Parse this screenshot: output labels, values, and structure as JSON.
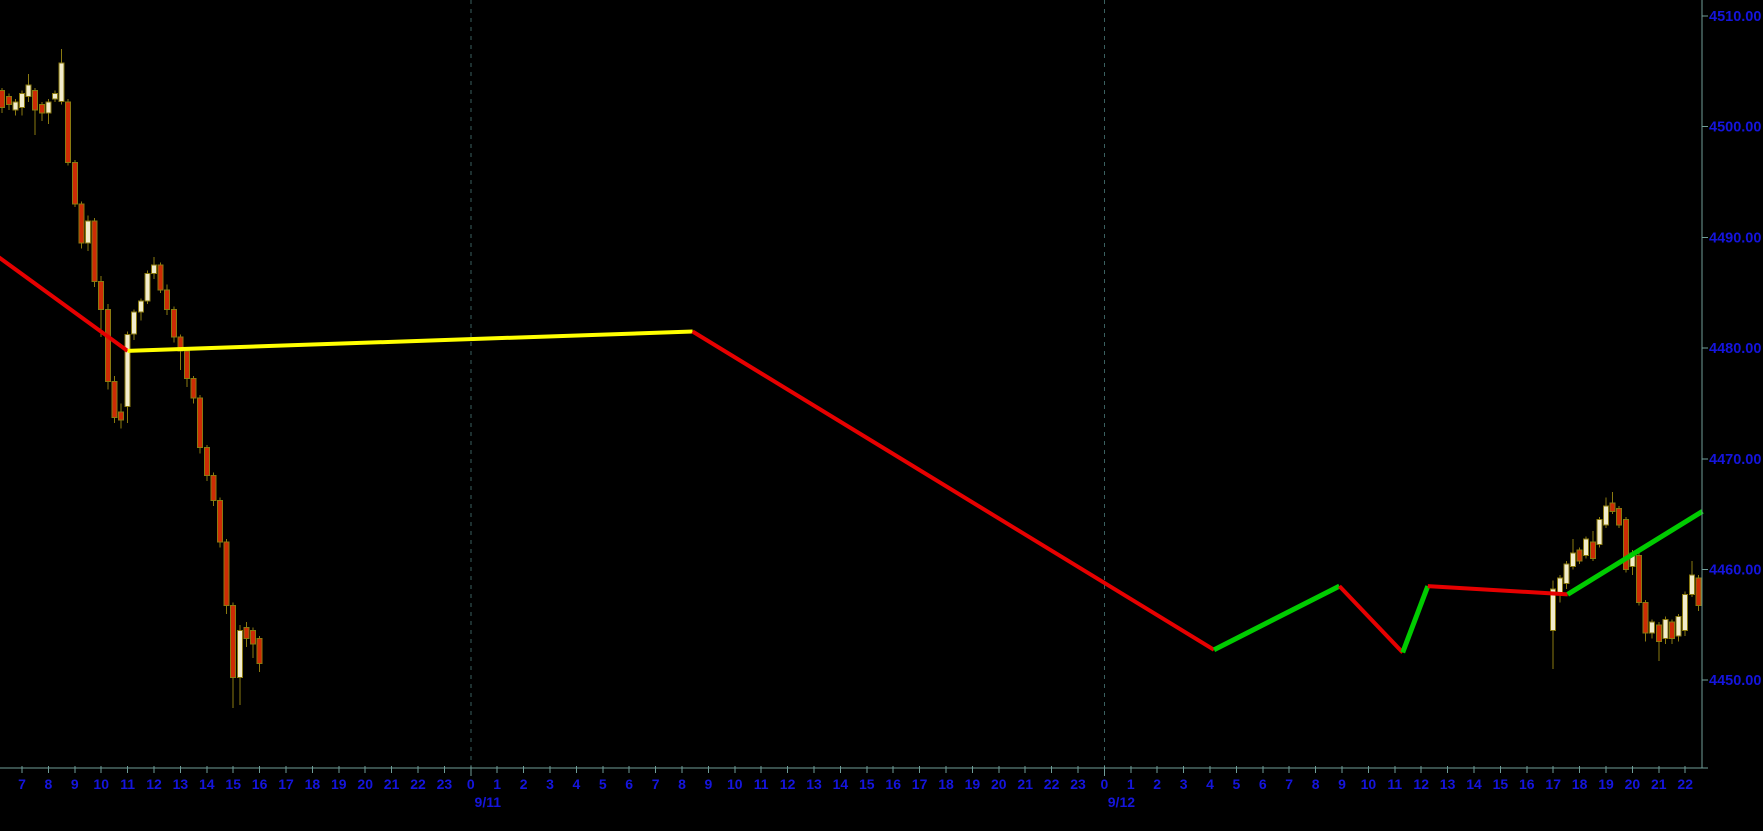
{
  "colors": {
    "background": "#000000",
    "axis_line": "#6f9e98",
    "session_divider": "#3a6161",
    "label_blue": "#1515dd",
    "candle_up_fill": "#f2eccd",
    "candle_down_fill": "#cd2b05",
    "candle_outline": "#8a7a10",
    "line_red": "#e60000",
    "line_yellow": "#ffff00",
    "line_green": "#00cc00"
  },
  "y_axis": {
    "ticks": [
      {
        "label": "4510.00",
        "price": 4510.0
      },
      {
        "label": "4500.00",
        "price": 4500.0
      },
      {
        "label": "4490.00",
        "price": 4490.0
      },
      {
        "label": "4480.00",
        "price": 4480.0
      },
      {
        "label": "4470.00",
        "price": 4470.0
      },
      {
        "label": "4460.00",
        "price": 4460.0
      },
      {
        "label": "4450.00",
        "price": 4450.0
      }
    ]
  },
  "x_axis": {
    "days": [
      {
        "index": 0,
        "date_label": null,
        "hours": [
          7,
          8,
          9,
          10,
          11,
          12,
          13,
          14,
          15,
          16,
          17,
          18,
          19,
          20,
          21,
          22,
          23
        ]
      },
      {
        "index": 1,
        "date_label": "9/11",
        "hours": [
          0,
          1,
          2,
          3,
          4,
          5,
          6,
          7,
          8,
          9,
          10,
          11,
          12,
          13,
          14,
          15,
          16,
          17,
          18,
          19,
          20,
          21,
          22,
          23
        ]
      },
      {
        "index": 2,
        "date_label": "9/12",
        "hours": [
          0,
          1,
          2,
          3,
          4,
          5,
          6,
          7,
          8,
          9,
          10,
          11,
          12,
          13,
          14,
          15,
          16,
          17,
          18,
          19,
          20,
          21,
          22
        ]
      }
    ]
  },
  "chart_data": {
    "type": "candlestick",
    "interval": "15min",
    "grid": "session-divider-dashed-verticals-only",
    "visible_price_range": [
      4446.5,
      4511.5
    ],
    "candle_columns": [
      "day",
      "time",
      "open",
      "high",
      "low",
      "close"
    ],
    "candles": [
      [
        0,
        "06:15",
        4503.25,
        4503.5,
        4501.25,
        4501.75
      ],
      [
        0,
        "06:30",
        4502.75,
        4503.0,
        4501.5,
        4502.0
      ],
      [
        0,
        "06:45",
        4501.5,
        4502.5,
        4501.0,
        4502.25
      ],
      [
        0,
        "07:00",
        4501.75,
        4503.25,
        4501.0,
        4503.0
      ],
      [
        0,
        "07:15",
        4502.75,
        4504.75,
        4502.25,
        4503.75
      ],
      [
        0,
        "07:30",
        4503.25,
        4503.5,
        4499.25,
        4501.5
      ],
      [
        0,
        "07:45",
        4502.0,
        4502.25,
        4500.5,
        4501.25
      ],
      [
        0,
        "08:00",
        4501.25,
        4502.5,
        4500.25,
        4502.25
      ],
      [
        0,
        "08:15",
        4502.5,
        4503.25,
        4502.25,
        4503.0
      ],
      [
        0,
        "08:30",
        4502.25,
        4507.0,
        4502.0,
        4505.75
      ],
      [
        0,
        "08:45",
        4502.25,
        4502.5,
        4496.5,
        4496.75
      ],
      [
        0,
        "09:00",
        4496.75,
        4497.0,
        4492.75,
        4493.0
      ],
      [
        0,
        "09:15",
        4493.0,
        4493.25,
        4489.0,
        4489.5
      ],
      [
        0,
        "09:30",
        4489.5,
        4492.0,
        4488.75,
        4491.5
      ],
      [
        0,
        "09:45",
        4491.5,
        4491.75,
        4485.5,
        4486.0
      ],
      [
        0,
        "10:00",
        4486.0,
        4486.5,
        4481.0,
        4483.5
      ],
      [
        0,
        "10:15",
        4483.5,
        4484.0,
        4476.25,
        4477.0
      ],
      [
        0,
        "10:30",
        4477.0,
        4477.5,
        4473.25,
        4473.75
      ],
      [
        0,
        "10:45",
        4474.25,
        4475.0,
        4472.75,
        4473.5
      ],
      [
        0,
        "11:00",
        4474.75,
        4481.5,
        4473.25,
        4481.25
      ],
      [
        0,
        "11:15",
        4481.25,
        4483.5,
        4480.75,
        4483.25
      ],
      [
        0,
        "11:30",
        4483.25,
        4484.5,
        4482.5,
        4484.25
      ],
      [
        0,
        "11:45",
        4484.25,
        4487.0,
        4484.0,
        4486.75
      ],
      [
        0,
        "12:00",
        4486.75,
        4488.25,
        4486.25,
        4487.5
      ],
      [
        0,
        "12:15",
        4487.5,
        4487.75,
        4485.0,
        4485.25
      ],
      [
        0,
        "12:30",
        4485.25,
        4485.75,
        4483.0,
        4483.5
      ],
      [
        0,
        "12:45",
        4483.5,
        4483.75,
        4480.5,
        4481.0
      ],
      [
        0,
        "13:00",
        4481.0,
        4481.25,
        4478.0,
        4479.75
      ],
      [
        0,
        "13:15",
        4479.75,
        4480.0,
        4476.5,
        4477.25
      ],
      [
        0,
        "13:30",
        4477.25,
        4477.5,
        4475.0,
        4475.5
      ],
      [
        0,
        "13:45",
        4475.5,
        4475.75,
        4470.5,
        4471.0
      ],
      [
        0,
        "14:00",
        4471.0,
        4471.25,
        4468.0,
        4468.5
      ],
      [
        0,
        "14:15",
        4468.5,
        4468.75,
        4465.75,
        4466.25
      ],
      [
        0,
        "14:30",
        4466.25,
        4466.5,
        4462.0,
        4462.5
      ],
      [
        0,
        "14:45",
        4462.5,
        4462.75,
        4456.0,
        4456.75
      ],
      [
        0,
        "15:00",
        4456.75,
        4457.0,
        4447.5,
        4450.25
      ],
      [
        0,
        "15:15",
        4450.25,
        4455.0,
        4447.75,
        4454.5
      ],
      [
        0,
        "15:30",
        4454.75,
        4455.25,
        4453.0,
        4453.75
      ],
      [
        0,
        "15:45",
        4454.5,
        4454.75,
        4452.0,
        4453.25
      ],
      [
        0,
        "16:00",
        4453.75,
        4454.0,
        4450.75,
        4451.5
      ],
      [
        2,
        "17:00",
        4454.5,
        4459.0,
        4451.0,
        4458.25
      ],
      [
        2,
        "17:15",
        4457.75,
        4459.5,
        4457.0,
        4459.25
      ],
      [
        2,
        "17:30",
        4458.75,
        4460.75,
        4458.25,
        4460.5
      ],
      [
        2,
        "17:45",
        4460.25,
        4462.75,
        4460.0,
        4461.5
      ],
      [
        2,
        "18:00",
        4461.75,
        4462.0,
        4460.5,
        4460.75
      ],
      [
        2,
        "18:15",
        4461.25,
        4463.0,
        4461.0,
        4462.75
      ],
      [
        2,
        "18:30",
        4462.5,
        4463.5,
        4460.75,
        4461.0
      ],
      [
        2,
        "18:45",
        4462.25,
        4464.75,
        4462.0,
        4464.5
      ],
      [
        2,
        "19:00",
        4464.0,
        4466.5,
        4463.75,
        4465.75
      ],
      [
        2,
        "19:15",
        4466.0,
        4467.0,
        4465.0,
        4465.25
      ],
      [
        2,
        "19:30",
        4465.5,
        4465.75,
        4463.75,
        4464.0
      ],
      [
        2,
        "19:45",
        4464.5,
        4464.75,
        4459.75,
        4460.0
      ],
      [
        2,
        "20:00",
        4460.25,
        4461.75,
        4459.5,
        4461.5
      ],
      [
        2,
        "20:15",
        4461.25,
        4461.5,
        4456.75,
        4457.0
      ],
      [
        2,
        "20:30",
        4457.0,
        4457.25,
        4453.5,
        4454.25
      ],
      [
        2,
        "20:45",
        4454.25,
        4455.5,
        4453.75,
        4455.25
      ],
      [
        2,
        "21:00",
        4455.0,
        4455.25,
        4451.75,
        4453.5
      ],
      [
        2,
        "21:15",
        4453.75,
        4455.75,
        4453.25,
        4455.5
      ],
      [
        2,
        "21:30",
        4455.25,
        4455.5,
        4453.25,
        4453.75
      ],
      [
        2,
        "21:45",
        4454.0,
        4456.0,
        4453.5,
        4455.75
      ],
      [
        2,
        "22:00",
        4454.5,
        4458.0,
        4454.0,
        4457.75
      ],
      [
        2,
        "22:15",
        4457.75,
        4460.75,
        4457.5,
        4459.5
      ],
      [
        2,
        "22:30",
        4459.25,
        4459.5,
        4456.25,
        4456.75
      ]
    ],
    "overlay_line_segments": [
      {
        "color": "red",
        "points": [
          {
            "day": 0,
            "hour": 6.1,
            "price": 4488.25
          },
          {
            "day": 0,
            "hour": 11.0,
            "price": 4479.75
          }
        ]
      },
      {
        "color": "yellow",
        "points": [
          {
            "day": 0,
            "hour": 11.0,
            "price": 4479.75
          },
          {
            "day": 1,
            "hour": 8.4,
            "price": 4481.5
          }
        ]
      },
      {
        "color": "red",
        "points": [
          {
            "day": 1,
            "hour": 8.4,
            "price": 4481.5
          },
          {
            "day": 2,
            "hour": 4.15,
            "price": 4452.75
          }
        ]
      },
      {
        "color": "green",
        "points": [
          {
            "day": 2,
            "hour": 4.15,
            "price": 4452.75
          },
          {
            "day": 2,
            "hour": 8.9,
            "price": 4458.5
          }
        ]
      },
      {
        "color": "red",
        "points": [
          {
            "day": 2,
            "hour": 8.9,
            "price": 4458.5
          },
          {
            "day": 2,
            "hour": 11.3,
            "price": 4452.5
          }
        ]
      },
      {
        "color": "green",
        "points": [
          {
            "day": 2,
            "hour": 11.3,
            "price": 4452.5
          },
          {
            "day": 2,
            "hour": 12.25,
            "price": 4458.5
          }
        ]
      },
      {
        "color": "red",
        "points": [
          {
            "day": 2,
            "hour": 12.25,
            "price": 4458.5
          },
          {
            "day": 2,
            "hour": 17.55,
            "price": 4457.75
          }
        ]
      },
      {
        "color": "green",
        "points": [
          {
            "day": 2,
            "hour": 17.55,
            "price": 4457.75
          },
          {
            "day": 2,
            "hour": 22.65,
            "price": 4465.25
          }
        ]
      }
    ]
  }
}
